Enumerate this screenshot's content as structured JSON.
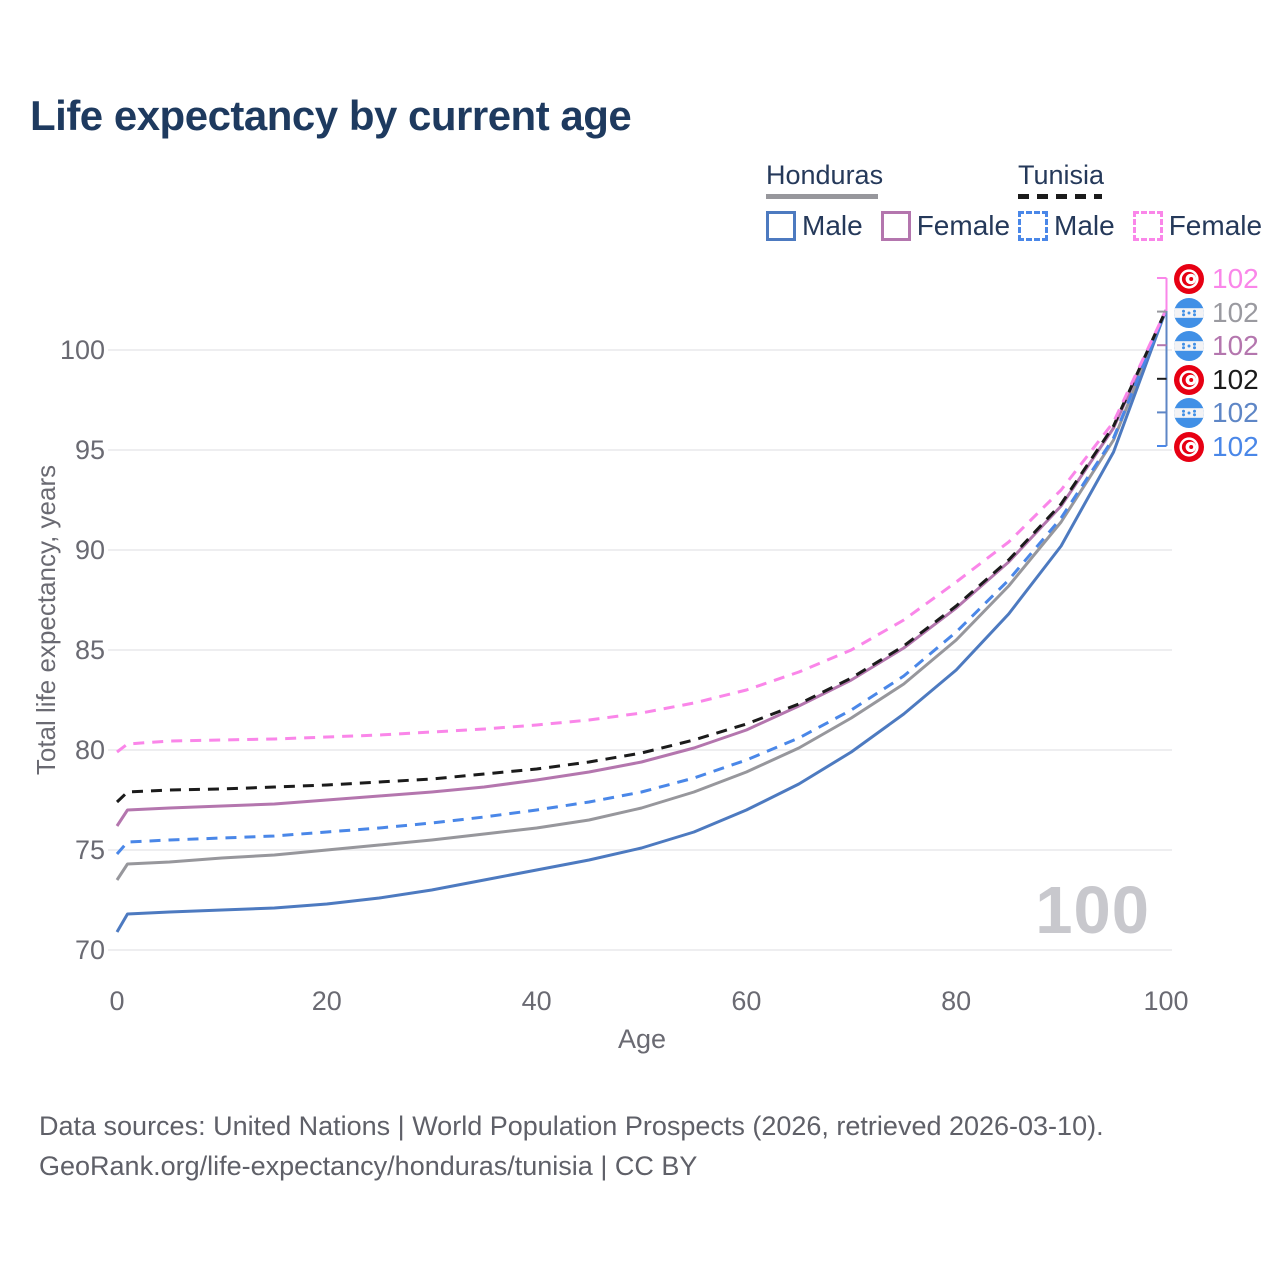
{
  "title": "Life expectancy by current age",
  "legend": {
    "groups": [
      {
        "name": "Honduras",
        "underline_style": "solid",
        "underline_color": "#97979c",
        "underline_width": 112,
        "items": [
          {
            "label": "Male",
            "color": "#4d7ac0",
            "dash": false
          },
          {
            "label": "Female",
            "color": "#b476ae",
            "dash": false
          }
        ]
      },
      {
        "name": "Tunisia",
        "underline_style": "dashed",
        "underline_color": "#1b1b1b",
        "underline_width": 84,
        "items": [
          {
            "label": "Male",
            "color": "#4a87e8",
            "dash": true
          },
          {
            "label": "Female",
            "color": "#fa86e9",
            "dash": true
          }
        ]
      }
    ]
  },
  "chart_data": {
    "type": "line",
    "title": "Life expectancy by current age",
    "xlabel": "Age",
    "ylabel": "Total life expectancy, years",
    "xlim": [
      0,
      100
    ],
    "ylim": [
      70,
      102
    ],
    "xticks": [
      0,
      20,
      40,
      60,
      80,
      100
    ],
    "yticks": [
      70,
      75,
      80,
      85,
      90,
      95,
      100
    ],
    "grid": "horizontal",
    "x": [
      0,
      1,
      5,
      10,
      15,
      20,
      25,
      30,
      35,
      40,
      45,
      50,
      55,
      60,
      65,
      70,
      75,
      80,
      85,
      90,
      95,
      100
    ],
    "series": [
      {
        "name": "Honduras Male",
        "country": "honduras",
        "color": "#4d7ac0",
        "line_style": "solid",
        "values": [
          70.9,
          71.8,
          71.9,
          72.0,
          72.1,
          72.3,
          72.6,
          73.0,
          73.5,
          74.0,
          74.5,
          75.1,
          75.9,
          77.0,
          78.3,
          79.9,
          81.8,
          84.0,
          86.8,
          90.2,
          94.9,
          102
        ]
      },
      {
        "name": "Honduras Female",
        "country": "honduras",
        "color": "#b476ae",
        "line_style": "solid",
        "values": [
          76.2,
          77.0,
          77.1,
          77.2,
          77.3,
          77.5,
          77.7,
          77.9,
          78.15,
          78.5,
          78.9,
          79.4,
          80.1,
          81.0,
          82.2,
          83.5,
          85.1,
          87.1,
          89.4,
          92.2,
          96.1,
          102
        ]
      },
      {
        "name": "Honduras (both sexes)",
        "country": "honduras",
        "color": "#97979c",
        "line_style": "solid",
        "values": [
          73.5,
          74.3,
          74.4,
          74.6,
          74.75,
          75.0,
          75.25,
          75.5,
          75.8,
          76.1,
          76.5,
          77.1,
          77.9,
          78.9,
          80.1,
          81.6,
          83.3,
          85.5,
          88.2,
          91.4,
          95.5,
          102
        ]
      },
      {
        "name": "Tunisia Male",
        "country": "tunisia",
        "color": "#4a87e8",
        "line_style": "dashed",
        "values": [
          74.8,
          75.4,
          75.5,
          75.6,
          75.7,
          75.9,
          76.1,
          76.35,
          76.65,
          77.0,
          77.4,
          77.9,
          78.6,
          79.5,
          80.6,
          82.0,
          83.7,
          85.9,
          88.5,
          91.6,
          95.6,
          102
        ]
      },
      {
        "name": "Tunisia Female",
        "country": "tunisia",
        "color": "#fa86e9",
        "line_style": "dashed",
        "values": [
          79.9,
          80.3,
          80.45,
          80.5,
          80.55,
          80.65,
          80.75,
          80.9,
          81.05,
          81.25,
          81.5,
          81.85,
          82.35,
          83.0,
          83.9,
          85.0,
          86.5,
          88.4,
          90.4,
          93.0,
          96.4,
          102
        ]
      },
      {
        "name": "Tunisia (both sexes)",
        "country": "tunisia",
        "color": "#1b1b1b",
        "line_style": "dashed",
        "values": [
          77.4,
          77.9,
          78.0,
          78.05,
          78.15,
          78.25,
          78.4,
          78.55,
          78.8,
          79.05,
          79.4,
          79.85,
          80.5,
          81.3,
          82.3,
          83.6,
          85.2,
          87.2,
          89.5,
          92.3,
          96.2,
          102
        ]
      }
    ],
    "end_labels": [
      {
        "value": "102",
        "flag": "tunisia",
        "color": "#fa86e9",
        "series": "Tunisia Female"
      },
      {
        "value": "102",
        "flag": "honduras",
        "color": "#9a9aa0",
        "series": "Honduras (both sexes)"
      },
      {
        "value": "102",
        "flag": "honduras",
        "color": "#b476ae",
        "series": "Honduras Female"
      },
      {
        "value": "102",
        "flag": "tunisia",
        "color": "#1b1b1b",
        "series": "Tunisia (both sexes)"
      },
      {
        "value": "102",
        "flag": "honduras",
        "color": "#5e86c6",
        "series": "Honduras Male"
      },
      {
        "value": "102",
        "flag": "tunisia",
        "color": "#4a87e8",
        "series": "Tunisia Male"
      }
    ],
    "watermark": "100",
    "legend_position": "top-right"
  },
  "colors": {
    "grid": "#e9e9ec",
    "axis_text": "#6a6a72",
    "title_text": "#1e3a5f",
    "watermark": "#c8c8cd",
    "flag_red": "#e70013",
    "flag_blue": "#4190e6"
  },
  "footer": {
    "line1": "Data sources: United Nations | World Population Prospects (2026, retrieved 2026-03-10).",
    "line2": "GeoRank.org/life-expectancy/honduras/tunisia | CC BY"
  }
}
